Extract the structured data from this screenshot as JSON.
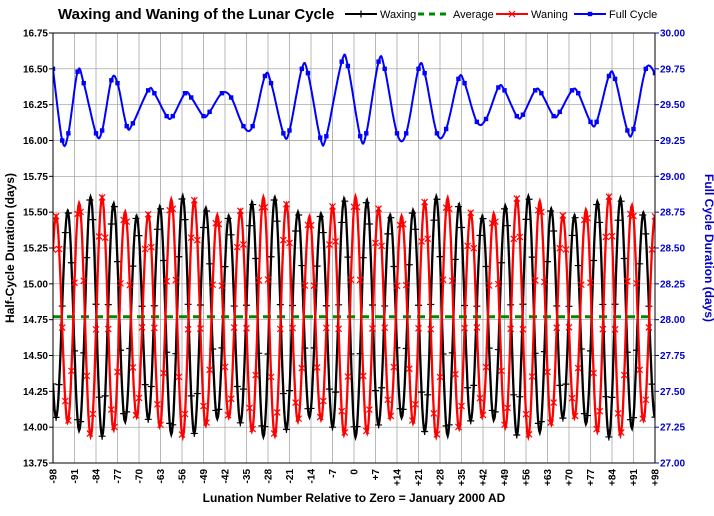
{
  "chart_data": {
    "type": "line",
    "title": "Waxing and Waning of the Lunar Cycle",
    "xlabel": "Lunation Number Relative to Zero = January 2000 AD",
    "ylabel": "Half-Cycle Duration (days)",
    "y2label": "Full Cycle Duration (days)",
    "xlim": [
      -98,
      98
    ],
    "ylim": [
      13.75,
      16.75
    ],
    "y2lim": [
      27.0,
      30.0
    ],
    "x_ticks": [
      "-98",
      "-91",
      "-84",
      "-77",
      "-70",
      "-63",
      "-56",
      "-49",
      "-42",
      "-35",
      "-28",
      "-21",
      "-14",
      "-7",
      "0",
      "+7",
      "+14",
      "+21",
      "+28",
      "+35",
      "+42",
      "+49",
      "+56",
      "+63",
      "+70",
      "+77",
      "+84",
      "+91",
      "+98"
    ],
    "y_ticks": [
      "13.75",
      "14.00",
      "14.25",
      "14.50",
      "14.75",
      "15.00",
      "15.25",
      "15.50",
      "15.75",
      "16.00",
      "16.25",
      "16.50",
      "16.75"
    ],
    "y2_ticks": [
      "27.00",
      "27.25",
      "27.50",
      "27.75",
      "28.00",
      "28.25",
      "28.50",
      "28.75",
      "29.00",
      "29.25",
      "29.50",
      "29.75",
      "30.00"
    ],
    "grid": true,
    "legend_position": "top",
    "series": [
      {
        "name": "Waxing",
        "axis": "left",
        "color": "#000000",
        "marker": "plus",
        "model": "half_cycle_oscillation",
        "mean": 14.77,
        "period_lunations": 7.5,
        "phase_lunation": -89.5,
        "amplitude_range": [
          0.7,
          0.84
        ],
        "sample_points": [
          [
            -89,
            14.0
          ],
          [
            -86,
            15.58
          ],
          [
            -82,
            13.95
          ],
          [
            -78,
            15.58
          ],
          [
            -74,
            13.96
          ],
          [
            -70,
            15.58
          ],
          [
            -63,
            13.96
          ],
          [
            -59,
            15.55
          ],
          [
            -55,
            13.98
          ],
          [
            -44,
            15.52
          ],
          [
            -40,
            14.0
          ],
          [
            -33,
            15.52
          ],
          [
            -22,
            15.55
          ],
          [
            -14,
            15.55
          ],
          [
            -3,
            15.55
          ],
          [
            1,
            13.98
          ],
          [
            13,
            13.94
          ],
          [
            17,
            15.58
          ],
          [
            21,
            13.93
          ],
          [
            29,
            13.93
          ],
          [
            32,
            15.58
          ],
          [
            36,
            13.93
          ],
          [
            40,
            15.57
          ],
          [
            55,
            15.57
          ],
          [
            70,
            15.56
          ],
          [
            74,
            13.98
          ],
          [
            81,
            15.52
          ],
          [
            85,
            14.0
          ],
          [
            88,
            15.52
          ]
        ]
      },
      {
        "name": "Average",
        "axis": "left",
        "color": "#008800",
        "style": "dashed",
        "values": [
          14.77,
          14.77
        ]
      },
      {
        "name": "Waning",
        "axis": "left",
        "color": "#ff0000",
        "marker": "x",
        "model": "half_cycle_oscillation",
        "mean": 14.77,
        "period_lunations": 7.5,
        "phase_lunation": -85.75,
        "amplitude_range": [
          0.7,
          0.84
        ],
        "sample_points": [
          [
            -96,
            15.55
          ],
          [
            -93,
            14.0
          ],
          [
            -89,
            15.52
          ],
          [
            -86,
            13.96
          ],
          [
            -78,
            13.96
          ],
          [
            -74,
            15.53
          ],
          [
            -70,
            14.0
          ],
          [
            -63,
            15.55
          ],
          [
            -59,
            13.98
          ],
          [
            -55,
            15.55
          ],
          [
            -44,
            14.0
          ],
          [
            -40,
            15.52
          ],
          [
            -33,
            14.0
          ],
          [
            -22,
            13.93
          ],
          [
            -14,
            13.92
          ],
          [
            -10,
            15.6
          ],
          [
            -3,
            13.93
          ],
          [
            1,
            15.55
          ],
          [
            13,
            15.57
          ],
          [
            17,
            13.95
          ],
          [
            21,
            15.52
          ],
          [
            29,
            15.57
          ],
          [
            32,
            14.0
          ],
          [
            36,
            15.52
          ],
          [
            40,
            13.98
          ],
          [
            55,
            13.96
          ],
          [
            70,
            13.97
          ],
          [
            74,
            15.55
          ],
          [
            81,
            13.96
          ],
          [
            85,
            15.55
          ],
          [
            92,
            13.93
          ]
        ]
      },
      {
        "name": "Full Cycle",
        "axis": "right",
        "color": "#0000ff",
        "marker": "square",
        "points": [
          [
            -98,
            29.75
          ],
          [
            -95,
            29.25
          ],
          [
            -93,
            29.3
          ],
          [
            -90,
            29.73
          ],
          [
            -88,
            29.65
          ],
          [
            -84,
            29.3
          ],
          [
            -82,
            29.32
          ],
          [
            -79,
            29.67
          ],
          [
            -77,
            29.65
          ],
          [
            -74,
            29.35
          ],
          [
            -72,
            29.37
          ],
          [
            -67,
            29.6
          ],
          [
            -65,
            29.58
          ],
          [
            -61,
            29.42
          ],
          [
            -59,
            29.42
          ],
          [
            -55,
            29.58
          ],
          [
            -53,
            29.55
          ],
          [
            -49,
            29.42
          ],
          [
            -47,
            29.45
          ],
          [
            -43,
            29.58
          ],
          [
            -40,
            29.55
          ],
          [
            -36,
            29.35
          ],
          [
            -33,
            29.35
          ],
          [
            -29,
            29.7
          ],
          [
            -27,
            29.65
          ],
          [
            -23,
            29.3
          ],
          [
            -21,
            29.32
          ],
          [
            -17,
            29.75
          ],
          [
            -15,
            29.72
          ],
          [
            -11,
            29.27
          ],
          [
            -9,
            29.28
          ],
          [
            -4,
            29.8
          ],
          [
            -2,
            29.77
          ],
          [
            2,
            29.28
          ],
          [
            4,
            29.3
          ],
          [
            8,
            29.8
          ],
          [
            10,
            29.75
          ],
          [
            14,
            29.3
          ],
          [
            17,
            29.3
          ],
          [
            21,
            29.75
          ],
          [
            23,
            29.72
          ],
          [
            27,
            29.3
          ],
          [
            30,
            29.33
          ],
          [
            34,
            29.68
          ],
          [
            36,
            29.65
          ],
          [
            40,
            29.38
          ],
          [
            43,
            29.4
          ],
          [
            47,
            29.62
          ],
          [
            49,
            29.6
          ],
          [
            53,
            29.42
          ],
          [
            55,
            29.43
          ],
          [
            59,
            29.6
          ],
          [
            61,
            29.58
          ],
          [
            65,
            29.42
          ],
          [
            67,
            29.45
          ],
          [
            71,
            29.6
          ],
          [
            73,
            29.58
          ],
          [
            77,
            29.38
          ],
          [
            79,
            29.38
          ],
          [
            83,
            29.7
          ],
          [
            85,
            29.68
          ],
          [
            89,
            29.32
          ],
          [
            91,
            29.33
          ],
          [
            95,
            29.75
          ],
          [
            98,
            29.72
          ]
        ]
      }
    ]
  }
}
